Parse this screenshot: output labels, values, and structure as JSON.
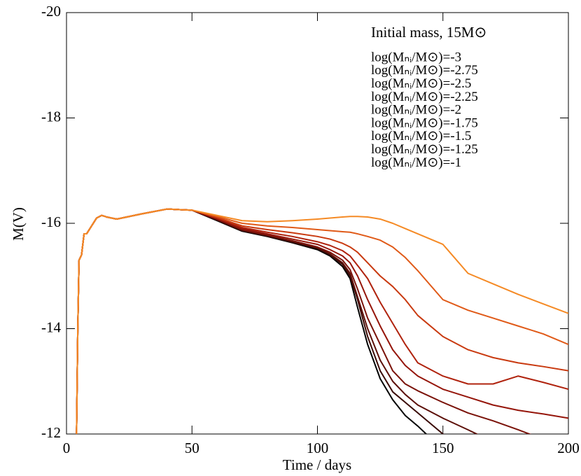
{
  "chart_data": {
    "type": "line",
    "annotation": "Initial mass, 15M⊙",
    "x_label": "Time / days",
    "y_label": "M(V)",
    "xlim": [
      0,
      200
    ],
    "xticks": [
      0,
      50,
      100,
      150,
      200
    ],
    "ylim": [
      -12,
      -20
    ],
    "yticks": [
      -20,
      -18,
      -16,
      -14,
      -12
    ],
    "x": [
      4,
      4.5,
      5,
      6,
      7,
      8,
      10,
      12,
      14,
      16,
      20,
      25,
      30,
      40,
      50,
      60,
      70,
      80,
      90,
      100,
      105,
      110,
      113,
      116,
      120,
      125,
      130,
      135,
      140,
      150,
      160,
      170,
      180,
      190,
      200
    ],
    "series": [
      {
        "name": "log(Mₙᵢ/M⊙)=-3",
        "color": "#000000",
        "values": [
          -12,
          -14,
          -15.3,
          -15.4,
          -15.8,
          -15.8,
          -15.95,
          -16.1,
          -16.15,
          -16.12,
          -16.08,
          -16.13,
          -16.18,
          -16.27,
          -16.25,
          -16.05,
          -15.85,
          -15.75,
          -15.63,
          -15.5,
          -15.38,
          -15.18,
          -14.95,
          -14.4,
          -13.7,
          -13.05,
          -12.65,
          -12.35,
          -12.15,
          -11.7,
          null,
          null,
          null,
          null,
          null
        ]
      },
      {
        "name": "log(Mₙᵢ/M⊙)=-2.75",
        "color": "#3a0a05",
        "values": [
          -12,
          -14,
          -15.3,
          -15.4,
          -15.8,
          -15.8,
          -15.95,
          -16.1,
          -16.15,
          -16.12,
          -16.08,
          -16.13,
          -16.18,
          -16.27,
          -16.25,
          -16.06,
          -15.86,
          -15.76,
          -15.64,
          -15.52,
          -15.4,
          -15.22,
          -15.0,
          -14.55,
          -13.85,
          -13.2,
          -12.8,
          -12.6,
          -12.4,
          -12.0,
          -11.7,
          null,
          null,
          null,
          null
        ]
      },
      {
        "name": "log(Mₙᵢ/M⊙)=-2.5",
        "color": "#5c0f08",
        "values": [
          -12,
          -14,
          -15.3,
          -15.4,
          -15.8,
          -15.8,
          -15.95,
          -16.1,
          -16.15,
          -16.12,
          -16.08,
          -16.13,
          -16.18,
          -16.27,
          -16.25,
          -16.07,
          -15.87,
          -15.77,
          -15.66,
          -15.54,
          -15.42,
          -15.25,
          -15.05,
          -14.6,
          -14.0,
          -13.4,
          -13.0,
          -12.75,
          -12.55,
          -12.3,
          -12.08,
          -11.85,
          null,
          null,
          null
        ]
      },
      {
        "name": "log(Mₙᵢ/M⊙)=-2.25",
        "color": "#7a1209",
        "values": [
          -12,
          -14,
          -15.3,
          -15.4,
          -15.8,
          -15.8,
          -15.95,
          -16.1,
          -16.15,
          -16.12,
          -16.08,
          -16.13,
          -16.18,
          -16.27,
          -16.25,
          -16.08,
          -15.88,
          -15.78,
          -15.67,
          -15.55,
          -15.45,
          -15.3,
          -15.12,
          -14.75,
          -14.2,
          -13.7,
          -13.2,
          -12.95,
          -12.82,
          -12.6,
          -12.4,
          -12.25,
          -12.08,
          -11.9,
          null
        ]
      },
      {
        "name": "log(Mₙᵢ/M⊙)=-2",
        "color": "#95150a",
        "values": [
          -12,
          -14,
          -15.3,
          -15.4,
          -15.8,
          -15.8,
          -15.95,
          -16.1,
          -16.15,
          -16.12,
          -16.08,
          -16.13,
          -16.18,
          -16.27,
          -16.25,
          -16.09,
          -15.9,
          -15.8,
          -15.7,
          -15.6,
          -15.5,
          -15.38,
          -15.25,
          -15.0,
          -14.55,
          -14.05,
          -13.6,
          -13.3,
          -13.1,
          -12.85,
          -12.7,
          -12.55,
          -12.45,
          -12.38,
          -12.3
        ]
      },
      {
        "name": "log(Mₙᵢ/M⊙)=-1.75",
        "color": "#b0230e",
        "values": [
          -12,
          -14,
          -15.3,
          -15.4,
          -15.8,
          -15.8,
          -15.95,
          -16.1,
          -16.15,
          -16.12,
          -16.08,
          -16.13,
          -16.18,
          -16.27,
          -16.25,
          -16.1,
          -15.92,
          -15.83,
          -15.75,
          -15.65,
          -15.58,
          -15.48,
          -15.38,
          -15.2,
          -14.95,
          -14.5,
          -14.1,
          -13.7,
          -13.35,
          -13.1,
          -12.95,
          -12.95,
          -13.1,
          -12.98,
          -12.85
        ]
      },
      {
        "name": "log(Mₙᵢ/M⊙)=-1.5",
        "color": "#c93a10",
        "values": [
          -12,
          -14,
          -15.3,
          -15.4,
          -15.8,
          -15.8,
          -15.95,
          -16.1,
          -16.15,
          -16.12,
          -16.08,
          -16.13,
          -16.18,
          -16.27,
          -16.25,
          -16.11,
          -15.95,
          -15.88,
          -15.82,
          -15.75,
          -15.7,
          -15.62,
          -15.55,
          -15.45,
          -15.25,
          -15.0,
          -14.8,
          -14.55,
          -14.25,
          -13.85,
          -13.6,
          -13.45,
          -13.35,
          -13.28,
          -13.2
        ]
      },
      {
        "name": "log(Mₙᵢ/M⊙)=-1.25",
        "color": "#e05a18",
        "values": [
          -12,
          -14,
          -15.3,
          -15.4,
          -15.8,
          -15.8,
          -15.95,
          -16.1,
          -16.15,
          -16.12,
          -16.08,
          -16.13,
          -16.18,
          -16.27,
          -16.25,
          -16.13,
          -16.0,
          -15.95,
          -15.92,
          -15.88,
          -15.86,
          -15.84,
          -15.83,
          -15.8,
          -15.75,
          -15.68,
          -15.55,
          -15.35,
          -15.1,
          -14.55,
          -14.35,
          -14.2,
          -14.05,
          -13.9,
          -13.7
        ]
      },
      {
        "name": "log(Mₙᵢ/M⊙)=-1",
        "color": "#f58a25",
        "values": [
          -12,
          -14,
          -15.3,
          -15.4,
          -15.8,
          -15.8,
          -15.95,
          -16.1,
          -16.15,
          -16.12,
          -16.08,
          -16.13,
          -16.18,
          -16.27,
          -16.25,
          -16.15,
          -16.05,
          -16.03,
          -16.05,
          -16.08,
          -16.1,
          -16.12,
          -16.13,
          -16.13,
          -16.12,
          -16.08,
          -16.0,
          -15.9,
          -15.8,
          -15.6,
          -15.05,
          -14.85,
          -14.65,
          -14.47,
          -14.29
        ]
      }
    ]
  }
}
